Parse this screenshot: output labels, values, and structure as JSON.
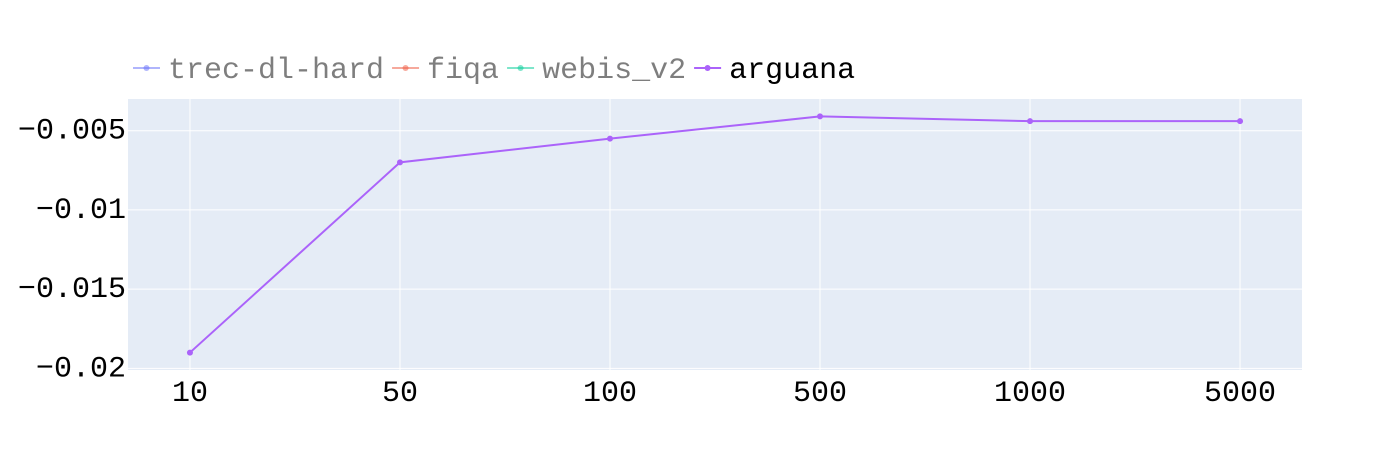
{
  "chart_data": {
    "type": "line",
    "categories": [
      "10",
      "50",
      "100",
      "500",
      "1000",
      "5000"
    ],
    "series": [
      {
        "name": "trec-dl-hard",
        "color": "#636efa",
        "visible": false,
        "values": [
          null,
          null,
          null,
          null,
          null,
          null
        ]
      },
      {
        "name": "fiqa",
        "color": "#ef553b",
        "visible": false,
        "values": [
          null,
          null,
          null,
          null,
          null,
          null
        ]
      },
      {
        "name": "webis_v2",
        "color": "#00cc96",
        "visible": false,
        "values": [
          null,
          null,
          null,
          null,
          null,
          null
        ]
      },
      {
        "name": "arguana",
        "color": "#ab63fa",
        "visible": true,
        "values": [
          -0.019,
          -0.007,
          -0.0055,
          -0.0041,
          -0.0044,
          -0.0044
        ]
      }
    ],
    "ylim": [
      -0.0201,
      -0.003
    ],
    "yticks": [
      {
        "value": -0.005,
        "label": "−0.005"
      },
      {
        "value": -0.01,
        "label": "−0.01"
      },
      {
        "value": -0.015,
        "label": "−0.015"
      },
      {
        "value": -0.02,
        "label": "−0.02"
      }
    ],
    "grid": true,
    "legend": "top"
  }
}
